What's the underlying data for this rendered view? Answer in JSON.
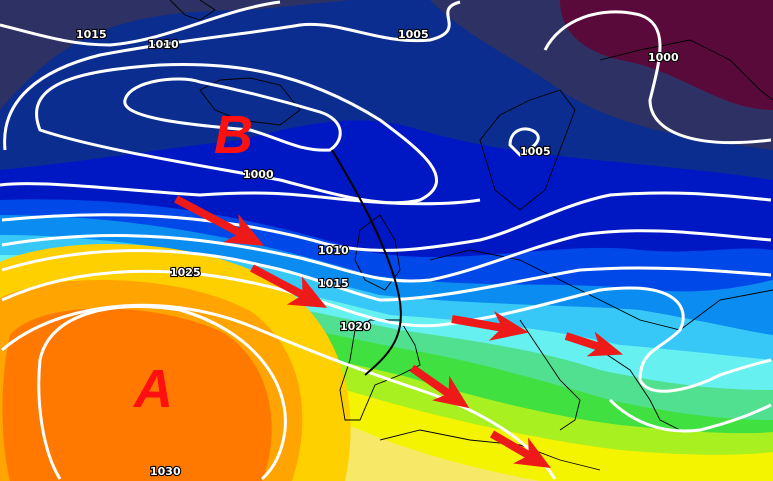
{
  "map": {
    "pressure_systems": [
      {
        "symbol": "B",
        "type": "low",
        "color": "#ff1010"
      },
      {
        "symbol": "A",
        "type": "high",
        "color": "#ff1010"
      }
    ],
    "isobar_labels": [
      "1015",
      "1010",
      "1005",
      "1000",
      "1005",
      "1000",
      "1010",
      "1015",
      "1020",
      "1025",
      "1030"
    ],
    "isobar_color": "#ffffff",
    "arrow_color": "#ee1a1a",
    "front_line_color": "#000000",
    "palette": [
      "#2d3163",
      "#0b2d8f",
      "#0018c4",
      "#0048e8",
      "#0a8cf0",
      "#38c8f8",
      "#66f0f0",
      "#50e090",
      "#40e040",
      "#a8f020",
      "#f4f400",
      "#f8e868",
      "#ffd000",
      "#ffa400",
      "#ff7800",
      "#5a0a3a"
    ]
  }
}
